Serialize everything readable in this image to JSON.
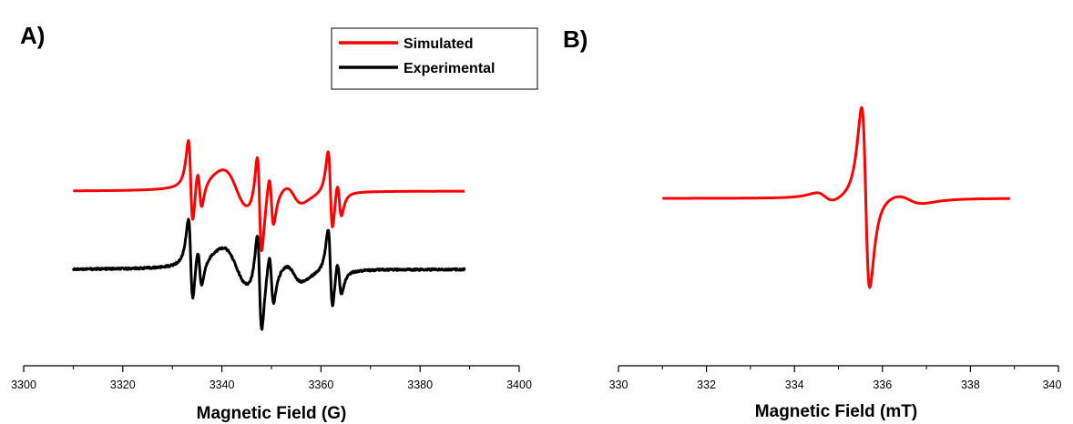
{
  "chart_data": [
    {
      "type": "line",
      "panel_label": "A)",
      "xlabel": "Magnetic Field (G)",
      "ylabel": "",
      "xlim": [
        3300,
        3400
      ],
      "xticks": [
        "3300",
        "3320",
        "3340",
        "3360",
        "3380",
        "3400"
      ],
      "y_axis_shown": false,
      "legend_position": "top-right",
      "x_range": [
        3310,
        3389
      ],
      "series": [
        {
          "name": "Simulated",
          "color": "#ff0000",
          "offset": 4.3,
          "width": 0.8,
          "noise": 0,
          "peaks": [
            {
              "x": 3333.7,
              "amp": 3.6
            },
            {
              "x": 3335.5,
              "amp": 1.8
            },
            {
              "x": 3347.6,
              "amp": 4.2
            },
            {
              "x": 3350.0,
              "amp": 2.2
            },
            {
              "x": 3361.9,
              "amp": 3.4
            },
            {
              "x": 3363.7,
              "amp": 1.6
            }
          ],
          "broad": [
            {
              "x": 3343.0,
              "amp": 1.8,
              "width": 5.0
            },
            {
              "x": 3354.5,
              "amp": 0.8,
              "width": 3.0
            }
          ]
        },
        {
          "name": "Experimental",
          "color": "#000000",
          "offset": 0,
          "width": 0.8,
          "noise": 0.05,
          "peaks": [
            {
              "x": 3333.7,
              "amp": 3.6
            },
            {
              "x": 3335.5,
              "amp": 1.8
            },
            {
              "x": 3347.6,
              "amp": 4.2
            },
            {
              "x": 3350.0,
              "amp": 2.2
            },
            {
              "x": 3361.9,
              "amp": 3.4
            },
            {
              "x": 3363.7,
              "amp": 1.6
            }
          ],
          "broad": [
            {
              "x": 3343.0,
              "amp": 1.8,
              "width": 5.0
            },
            {
              "x": 3354.5,
              "amp": 0.8,
              "width": 3.0
            }
          ]
        }
      ]
    },
    {
      "type": "line",
      "panel_label": "B)",
      "xlabel": "Magnetic Field (mT)",
      "ylabel": "",
      "xlim": [
        330,
        340
      ],
      "xticks": [
        "330",
        "332",
        "334",
        "336",
        "338",
        "340"
      ],
      "y_axis_shown": false,
      "x_range": [
        331,
        338.9
      ],
      "series": [
        {
          "name": "",
          "color": "#ff0000",
          "offset": 0,
          "width": 0.16,
          "noise": 0,
          "peaks": [
            {
              "x": 335.62,
              "amp": 9.0
            }
          ],
          "broad": [
            {
              "x": 334.7,
              "amp": 0.45,
              "width": 0.35
            },
            {
              "x": 336.6,
              "amp": 0.45,
              "width": 0.55
            }
          ]
        }
      ]
    }
  ]
}
